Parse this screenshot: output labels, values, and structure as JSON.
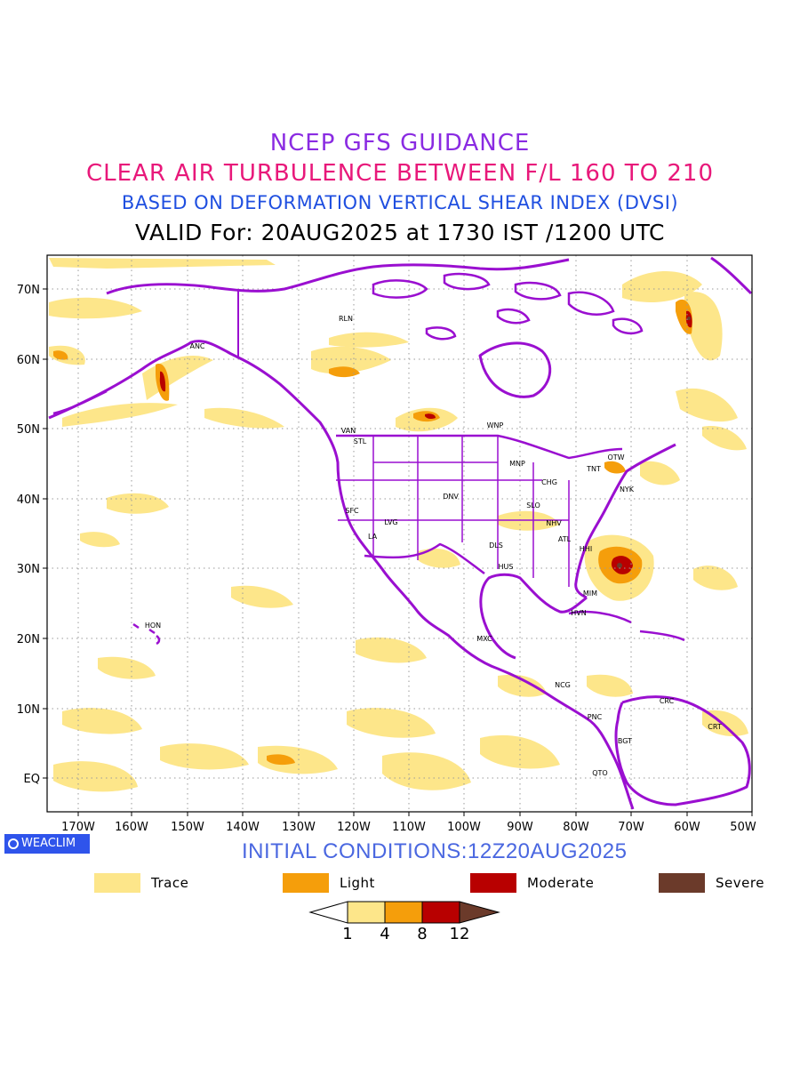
{
  "titles": {
    "line1": "NCEP GFS GUIDANCE",
    "line2": "CLEAR AIR TURBULENCE BETWEEN F/L 160 TO 210",
    "line3": "BASED ON DEFORMATION VERTICAL SHEAR INDEX (DVSI)",
    "line4": "VALID For: 20AUG2025 at 1730 IST /1200 UTC"
  },
  "lat_labels": [
    "70N",
    "60N",
    "50N",
    "40N",
    "30N",
    "20N",
    "10N",
    "EQ"
  ],
  "lon_labels": [
    "170W",
    "160W",
    "150W",
    "140W",
    "130W",
    "120W",
    "110W",
    "100W",
    "90W",
    "80W",
    "70W",
    "60W",
    "50W"
  ],
  "stations": [
    {
      "code": "ANC"
    },
    {
      "code": "RLN"
    },
    {
      "code": "VAN"
    },
    {
      "code": "STL"
    },
    {
      "code": "WNP"
    },
    {
      "code": "MNP"
    },
    {
      "code": "TNT"
    },
    {
      "code": "OTW"
    },
    {
      "code": "CHG"
    },
    {
      "code": "NYK"
    },
    {
      "code": "DNV"
    },
    {
      "code": "SFC"
    },
    {
      "code": "LVG"
    },
    {
      "code": "SLO"
    },
    {
      "code": "LA"
    },
    {
      "code": "NHV"
    },
    {
      "code": "ATL"
    },
    {
      "code": "DLS"
    },
    {
      "code": "HHI"
    },
    {
      "code": "HUS"
    },
    {
      "code": "MIM"
    },
    {
      "code": "HVN"
    },
    {
      "code": "HON"
    },
    {
      "code": "MXC"
    },
    {
      "code": "NCG"
    },
    {
      "code": "CRC"
    },
    {
      "code": "PNC"
    },
    {
      "code": "BGT"
    },
    {
      "code": "CRT"
    },
    {
      "code": "QTO"
    }
  ],
  "badge": "WEACLIM",
  "initial_conditions": "INITIAL CONDITIONS:12Z20AUG2025",
  "legend": [
    {
      "label": "Trace",
      "color": "#fde68a"
    },
    {
      "label": "Light",
      "color": "#f59e0b"
    },
    {
      "label": "Moderate",
      "color": "#b80000"
    },
    {
      "label": "Severe",
      "color": "#6b3a2a"
    }
  ],
  "colorbar": {
    "ticks": [
      "1",
      "4",
      "8",
      "12"
    ]
  },
  "colors": {
    "boundary": "#9a0fd0",
    "grid": "#9a9a9a"
  }
}
